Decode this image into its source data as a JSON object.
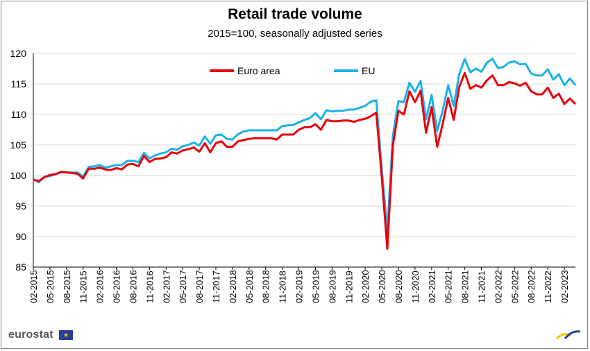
{
  "title": "Retail trade volume",
  "subtitle": "2015=100, seasonally adjusted series",
  "brand": "eurostat",
  "chart_data": {
    "type": "line",
    "title": "Retail trade volume",
    "subtitle": "2015=100, seasonally adjusted series",
    "xlabel": "",
    "ylabel": "",
    "ylim": [
      85,
      120
    ],
    "yticks": [
      85,
      90,
      95,
      100,
      105,
      110,
      115,
      120
    ],
    "x_tick_labels": [
      "02-2015",
      "05-2015",
      "08-2015",
      "11-2015",
      "02-2016",
      "05-2016",
      "08-2016",
      "11-2016",
      "02-2017",
      "05-2017",
      "08-2017",
      "11-2017",
      "02-2018",
      "05-2018",
      "08-2018",
      "11-2018",
      "02-2019",
      "05-2019",
      "08-2019",
      "11-2019",
      "02-2020",
      "05-2020",
      "08-2020",
      "11-2020",
      "02-2021",
      "05-2021",
      "08-2021",
      "11-2021",
      "02-2022",
      "05-2022",
      "08-2022",
      "11-2022",
      "02-2023"
    ],
    "x_start": "02-2015",
    "x_end": "02-2023",
    "grid": "horizontal",
    "legend": "top-center",
    "series": [
      {
        "name": "Euro area",
        "color": "#e8000b",
        "values": [
          99.3,
          99.1,
          99.7,
          100.1,
          100.2,
          100.6,
          100.5,
          100.4,
          100.3,
          99.5,
          101.1,
          101.1,
          101.3,
          101.0,
          100.9,
          101.2,
          101.0,
          101.8,
          101.9,
          101.5,
          103.2,
          102.2,
          102.7,
          102.8,
          103.0,
          103.8,
          103.6,
          104.1,
          104.3,
          104.6,
          103.9,
          105.3,
          103.8,
          105.3,
          105.6,
          104.7,
          104.7,
          105.6,
          105.8,
          106.0,
          106.1,
          106.1,
          106.1,
          106.1,
          105.9,
          106.7,
          106.7,
          106.7,
          107.5,
          107.9,
          107.9,
          108.4,
          107.5,
          109.1,
          108.9,
          108.9,
          109.0,
          109.0,
          108.8,
          109.1,
          109.3,
          109.7,
          110.3,
          99.6,
          88.0,
          104.9,
          110.6,
          110.0,
          113.8,
          112.0,
          113.9,
          107.0,
          111.2,
          104.7,
          108.4,
          112.7,
          109.1,
          114.5,
          116.8,
          114.2,
          114.8,
          114.4,
          115.6,
          116.4,
          114.8,
          114.8,
          115.3,
          115.1,
          114.7,
          115.2,
          113.8,
          113.3,
          113.3,
          114.4,
          112.7,
          113.4,
          111.7,
          112.6,
          111.7
        ]
      },
      {
        "name": "EU",
        "color": "#1ab2e8",
        "values": [
          99.4,
          98.9,
          99.8,
          99.9,
          100.2,
          100.5,
          100.5,
          100.5,
          100.5,
          99.8,
          101.4,
          101.5,
          101.7,
          101.3,
          101.5,
          101.7,
          101.7,
          102.4,
          102.4,
          102.2,
          103.7,
          102.8,
          103.3,
          103.6,
          103.8,
          104.4,
          104.2,
          104.8,
          105.0,
          105.4,
          104.9,
          106.4,
          105.2,
          106.6,
          106.7,
          106.0,
          105.9,
          106.8,
          107.2,
          107.4,
          107.4,
          107.4,
          107.4,
          107.4,
          107.4,
          108.1,
          108.2,
          108.3,
          108.7,
          109.1,
          109.4,
          110.2,
          109.2,
          110.7,
          110.5,
          110.6,
          110.6,
          110.8,
          110.8,
          111.1,
          111.4,
          112.1,
          112.3,
          101.0,
          90.9,
          106.5,
          112.2,
          112.0,
          115.2,
          113.7,
          115.5,
          109.2,
          113.2,
          107.3,
          110.6,
          114.8,
          111.4,
          116.6,
          119.1,
          116.9,
          117.5,
          117.0,
          118.5,
          119.1,
          117.6,
          117.8,
          118.5,
          118.7,
          118.2,
          118.3,
          116.7,
          116.4,
          116.4,
          117.4,
          115.7,
          116.6,
          114.8,
          115.9,
          114.8
        ]
      }
    ]
  }
}
